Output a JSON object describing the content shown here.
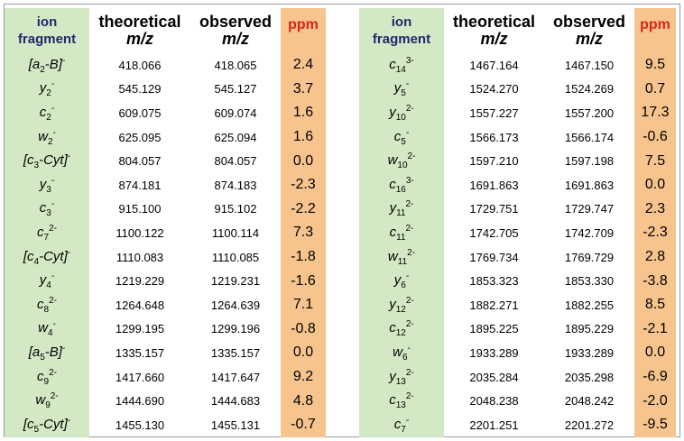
{
  "headers": {
    "ion_line1": "ion",
    "ion_line2": "fragment",
    "theo_line1": "theoretical",
    "theo_line2": "m/z",
    "obs_line1": "observed",
    "obs_line2": "m/z",
    "ppm": "ppm"
  },
  "left_rows": [
    {
      "pre": "[a",
      "sub": "2",
      "post": "-B]",
      "sup": "-",
      "theo": "418.066",
      "obs": "418.065",
      "ppm": "2.4"
    },
    {
      "pre": "y",
      "sub": "2",
      "post": "",
      "sup": "-",
      "theo": "545.129",
      "obs": "545.127",
      "ppm": "3.7"
    },
    {
      "pre": "c",
      "sub": "2",
      "post": "",
      "sup": "-",
      "theo": "609.075",
      "obs": "609.074",
      "ppm": "1.6"
    },
    {
      "pre": "w",
      "sub": "2",
      "post": "",
      "sup": "-",
      "theo": "625.095",
      "obs": "625.094",
      "ppm": "1.6"
    },
    {
      "pre": "[c",
      "sub": "3",
      "post": "-Cyt]",
      "sup": "-",
      "theo": "804.057",
      "obs": "804.057",
      "ppm": "0.0"
    },
    {
      "pre": "y",
      "sub": "3",
      "post": "",
      "sup": "-",
      "theo": "874.181",
      "obs": "874.183",
      "ppm": "-2.3"
    },
    {
      "pre": "c",
      "sub": "3",
      "post": "",
      "sup": "-",
      "theo": "915.100",
      "obs": "915.102",
      "ppm": "-2.2"
    },
    {
      "pre": "c",
      "sub": "7",
      "post": "",
      "sup": "2-",
      "theo": "1100.122",
      "obs": "1100.114",
      "ppm": "7.3"
    },
    {
      "pre": "[c",
      "sub": "4",
      "post": "-Cyt]",
      "sup": "-",
      "theo": "1110.083",
      "obs": "1110.085",
      "ppm": "-1.8"
    },
    {
      "pre": "y",
      "sub": "4",
      "post": "",
      "sup": "-",
      "theo": "1219.229",
      "obs": "1219.231",
      "ppm": "-1.6"
    },
    {
      "pre": "c",
      "sub": "8",
      "post": "",
      "sup": "2-",
      "theo": "1264.648",
      "obs": "1264.639",
      "ppm": "7.1"
    },
    {
      "pre": "w",
      "sub": "4",
      "post": "",
      "sup": "-",
      "theo": "1299.195",
      "obs": "1299.196",
      "ppm": "-0.8"
    },
    {
      "pre": "[a",
      "sub": "5",
      "post": "-B]",
      "sup": "-",
      "theo": "1335.157",
      "obs": "1335.157",
      "ppm": "0.0"
    },
    {
      "pre": "c",
      "sub": "9",
      "post": "",
      "sup": "2-",
      "theo": "1417.660",
      "obs": "1417.647",
      "ppm": "9.2"
    },
    {
      "pre": "w",
      "sub": "9",
      "post": "",
      "sup": "2-",
      "theo": "1444.690",
      "obs": "1444.683",
      "ppm": "4.8"
    },
    {
      "pre": "[c",
      "sub": "5",
      "post": "-Cyt]",
      "sup": "-",
      "theo": "1455.130",
      "obs": "1455.131",
      "ppm": "-0.7"
    }
  ],
  "right_rows": [
    {
      "pre": "c",
      "sub": "14",
      "post": "",
      "sup": "3-",
      "theo": "1467.164",
      "obs": "1467.150",
      "ppm": "9.5"
    },
    {
      "pre": "y",
      "sub": "5",
      "post": "",
      "sup": "-",
      "theo": "1524.270",
      "obs": "1524.269",
      "ppm": "0.7"
    },
    {
      "pre": "y",
      "sub": "10",
      "post": "",
      "sup": "2-",
      "theo": "1557.227",
      "obs": "1557.200",
      "ppm": "17.3"
    },
    {
      "pre": "c",
      "sub": "5",
      "post": "",
      "sup": "-",
      "theo": "1566.173",
      "obs": "1566.174",
      "ppm": "-0.6"
    },
    {
      "pre": "w",
      "sub": "10",
      "post": "",
      "sup": "2-",
      "theo": "1597.210",
      "obs": "1597.198",
      "ppm": "7.5"
    },
    {
      "pre": "c",
      "sub": "16",
      "post": "",
      "sup": "3-",
      "theo": "1691.863",
      "obs": "1691.863",
      "ppm": "0.0"
    },
    {
      "pre": "y",
      "sub": "11",
      "post": "",
      "sup": "2-",
      "theo": "1729.751",
      "obs": "1729.747",
      "ppm": "2.3"
    },
    {
      "pre": "c",
      "sub": "11",
      "post": "",
      "sup": "2-",
      "theo": "1742.705",
      "obs": "1742.709",
      "ppm": "-2.3"
    },
    {
      "pre": "w",
      "sub": "11",
      "post": "",
      "sup": "2-",
      "theo": "1769.734",
      "obs": "1769.729",
      "ppm": "2.8"
    },
    {
      "pre": "y",
      "sub": "6",
      "post": "",
      "sup": "-",
      "theo": "1853.323",
      "obs": "1853.330",
      "ppm": "-3.8"
    },
    {
      "pre": "y",
      "sub": "12",
      "post": "",
      "sup": "2-",
      "theo": "1882.271",
      "obs": "1882.255",
      "ppm": "8.5"
    },
    {
      "pre": "c",
      "sub": "12",
      "post": "",
      "sup": "2-",
      "theo": "1895.225",
      "obs": "1895.229",
      "ppm": "-2.1"
    },
    {
      "pre": "w",
      "sub": "6",
      "post": "",
      "sup": "-",
      "theo": "1933.289",
      "obs": "1933.289",
      "ppm": "0.0"
    },
    {
      "pre": "y",
      "sub": "13",
      "post": "",
      "sup": "2-",
      "theo": "2035.284",
      "obs": "2035.298",
      "ppm": "-6.9"
    },
    {
      "pre": "c",
      "sub": "13",
      "post": "",
      "sup": "2-",
      "theo": "2048.238",
      "obs": "2048.242",
      "ppm": "-2.0"
    },
    {
      "pre": "c",
      "sub": "7",
      "post": "",
      "sup": "-",
      "theo": "2201.251",
      "obs": "2201.272",
      "ppm": "-9.5"
    }
  ]
}
